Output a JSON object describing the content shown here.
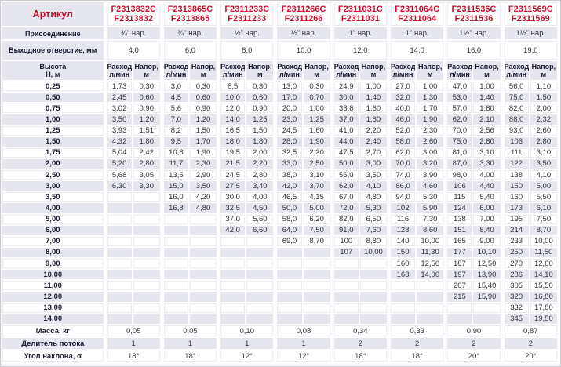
{
  "colors": {
    "accent_red": "#c8102e",
    "stripe": "#e6e6ee",
    "grid_line": "#c9c9ce"
  },
  "table": {
    "labels": {
      "article": "Артикул",
      "connection": "Присоединение",
      "outlet": "Выходное отверстие, мм",
      "height": "Высота\nН, м",
      "flow": "Расход,\nл/мин",
      "head": "Напор,\nм",
      "mass": "Масса, кг",
      "divider": "Делитель потока",
      "angle": "Угол наклона, α"
    },
    "heights": [
      "0,25",
      "0,50",
      "0,75",
      "1,00",
      "1,25",
      "1,50",
      "1,75",
      "2,00",
      "2,50",
      "3,00",
      "3,50",
      "4,00",
      "5,00",
      "6,00",
      "7,00",
      "8,00",
      "9,00",
      "10,00",
      "11,00",
      "12,00",
      "13,00",
      "14,00"
    ],
    "columns": [
      {
        "article_c": "F2313832C",
        "article": "F2313832",
        "connection": "¾\" нар.",
        "outlet": "4,0",
        "mass": "0,05",
        "divider": "1",
        "angle": "18°",
        "values": [
          [
            "1,73",
            "0,30"
          ],
          [
            "2,45",
            "0,60"
          ],
          [
            "3,02",
            "0,90"
          ],
          [
            "3,50",
            "1,20"
          ],
          [
            "3,93",
            "1,51"
          ],
          [
            "4,32",
            "1,80"
          ],
          [
            "5,04",
            "2,42"
          ],
          [
            "5,20",
            "2,80"
          ],
          [
            "5,68",
            "3,05"
          ],
          [
            "6,30",
            "3,30"
          ],
          [
            "",
            ""
          ],
          [
            "",
            ""
          ],
          [
            "",
            ""
          ],
          [
            "",
            ""
          ],
          [
            "",
            ""
          ],
          [
            "",
            ""
          ],
          [
            "",
            ""
          ],
          [
            "",
            ""
          ],
          [
            "",
            ""
          ],
          [
            "",
            ""
          ],
          [
            "",
            ""
          ],
          [
            "",
            ""
          ]
        ]
      },
      {
        "article_c": "F2313865C",
        "article": "F2313865",
        "connection": "¾\" нар.",
        "outlet": "6,0",
        "mass": "0,05",
        "divider": "1",
        "angle": "18°",
        "values": [
          [
            "3,0",
            "0,30"
          ],
          [
            "4,5",
            "0,60"
          ],
          [
            "5,6",
            "0,90"
          ],
          [
            "7,0",
            "1,20"
          ],
          [
            "8,2",
            "1,50"
          ],
          [
            "9,5",
            "1,70"
          ],
          [
            "10,8",
            "1,90"
          ],
          [
            "11,7",
            "2,30"
          ],
          [
            "13,5",
            "2,90"
          ],
          [
            "15,0",
            "3,50"
          ],
          [
            "16,0",
            "4,20"
          ],
          [
            "16,8",
            "4,80"
          ],
          [
            "",
            ""
          ],
          [
            "",
            ""
          ],
          [
            "",
            ""
          ],
          [
            "",
            ""
          ],
          [
            "",
            ""
          ],
          [
            "",
            ""
          ],
          [
            "",
            ""
          ],
          [
            "",
            ""
          ],
          [
            "",
            ""
          ],
          [
            "",
            ""
          ]
        ]
      },
      {
        "article_c": "F2311233C",
        "article": "F2311233",
        "connection": "½\" нар.",
        "outlet": "8,0",
        "mass": "0,10",
        "divider": "1",
        "angle": "12°",
        "values": [
          [
            "8,5",
            "0,30"
          ],
          [
            "10,0",
            "0,60"
          ],
          [
            "12,0",
            "0,90"
          ],
          [
            "14,0",
            "1,25"
          ],
          [
            "16,5",
            "1,50"
          ],
          [
            "18,0",
            "1,80"
          ],
          [
            "19,5",
            "2,00"
          ],
          [
            "21,5",
            "2,20"
          ],
          [
            "24,5",
            "2,80"
          ],
          [
            "27,5",
            "3,40"
          ],
          [
            "30,0",
            "4,00"
          ],
          [
            "32,5",
            "4,50"
          ],
          [
            "37,0",
            "5,60"
          ],
          [
            "42,0",
            "6,60"
          ],
          [
            "",
            ""
          ],
          [
            "",
            ""
          ],
          [
            "",
            ""
          ],
          [
            "",
            ""
          ],
          [
            "",
            ""
          ],
          [
            "",
            ""
          ],
          [
            "",
            ""
          ],
          [
            "",
            ""
          ]
        ]
      },
      {
        "article_c": "F2311266C",
        "article": "F2311266",
        "connection": "½\" нар.",
        "outlet": "10,0",
        "mass": "0,08",
        "divider": "1",
        "angle": "12°",
        "values": [
          [
            "13,0",
            "0,30"
          ],
          [
            "17,0",
            "0,70"
          ],
          [
            "20,0",
            "1,00"
          ],
          [
            "23,0",
            "1,25"
          ],
          [
            "24,5",
            "1,60"
          ],
          [
            "28,0",
            "1,90"
          ],
          [
            "32,5",
            "2,20"
          ],
          [
            "33,0",
            "2,50"
          ],
          [
            "38,0",
            "3,10"
          ],
          [
            "42,0",
            "3,70"
          ],
          [
            "46,5",
            "4,15"
          ],
          [
            "50,0",
            "5,00"
          ],
          [
            "58,0",
            "6,20"
          ],
          [
            "64,0",
            "7,50"
          ],
          [
            "69,0",
            "8,70"
          ],
          [
            "",
            ""
          ],
          [
            "",
            ""
          ],
          [
            "",
            ""
          ],
          [
            "",
            ""
          ],
          [
            "",
            ""
          ],
          [
            "",
            ""
          ],
          [
            "",
            ""
          ]
        ]
      },
      {
        "article_c": "F2311031C",
        "article": "F2311031",
        "connection": "1\" нар.",
        "outlet": "12,0",
        "mass": "0,34",
        "divider": "2",
        "angle": "18°",
        "values": [
          [
            "24,9",
            "1,00"
          ],
          [
            "30,0",
            "1,40"
          ],
          [
            "33,8",
            "1,60"
          ],
          [
            "37,0",
            "1,80"
          ],
          [
            "41,0",
            "2,20"
          ],
          [
            "44,0",
            "2,40"
          ],
          [
            "47,5",
            "2,70"
          ],
          [
            "50,0",
            "3,00"
          ],
          [
            "56,0",
            "3,50"
          ],
          [
            "62,0",
            "4,10"
          ],
          [
            "67,0",
            "4,80"
          ],
          [
            "72,0",
            "5,30"
          ],
          [
            "82,0",
            "6,50"
          ],
          [
            "91,0",
            "7,60"
          ],
          [
            "100",
            "8,80"
          ],
          [
            "107",
            "10,00"
          ],
          [
            "",
            ""
          ],
          [
            "",
            ""
          ],
          [
            "",
            ""
          ],
          [
            "",
            ""
          ],
          [
            "",
            ""
          ],
          [
            "",
            ""
          ]
        ]
      },
      {
        "article_c": "F2311064C",
        "article": "F2311064",
        "connection": "1\" нар.",
        "outlet": "14,0",
        "mass": "0,33",
        "divider": "2",
        "angle": "18°",
        "values": [
          [
            "27,0",
            "1,00"
          ],
          [
            "32,0",
            "1,30"
          ],
          [
            "40,0",
            "1,70"
          ],
          [
            "46,0",
            "1,90"
          ],
          [
            "52,0",
            "2,30"
          ],
          [
            "58,0",
            "2,60"
          ],
          [
            "62,0",
            "3,00"
          ],
          [
            "70,0",
            "3,20"
          ],
          [
            "74,0",
            "3,90"
          ],
          [
            "86,0",
            "4,60"
          ],
          [
            "94,0",
            "5,30"
          ],
          [
            "102",
            "5,90"
          ],
          [
            "116",
            "7,30"
          ],
          [
            "128",
            "8,60"
          ],
          [
            "140",
            "10,00"
          ],
          [
            "150",
            "11,30"
          ],
          [
            "160",
            "12,50"
          ],
          [
            "168",
            "14,00"
          ],
          [
            "",
            ""
          ],
          [
            "",
            ""
          ],
          [
            "",
            ""
          ],
          [
            "",
            ""
          ]
        ]
      },
      {
        "article_c": "F2311536C",
        "article": "F2311536",
        "connection": "1½\" нар.",
        "outlet": "16,0",
        "mass": "0,90",
        "divider": "2",
        "angle": "20°",
        "values": [
          [
            "47,0",
            "1,00"
          ],
          [
            "53,0",
            "1,40"
          ],
          [
            "57,0",
            "1,80"
          ],
          [
            "62,0",
            "2,10"
          ],
          [
            "70,0",
            "2,56"
          ],
          [
            "75,0",
            "2,80"
          ],
          [
            "81,0",
            "3,10"
          ],
          [
            "87,0",
            "3,30"
          ],
          [
            "98,0",
            "4,00"
          ],
          [
            "106",
            "4,40"
          ],
          [
            "115",
            "5,40"
          ],
          [
            "124",
            "6,00"
          ],
          [
            "138",
            "7,00"
          ],
          [
            "151",
            "8,40"
          ],
          [
            "165",
            "9,00"
          ],
          [
            "177",
            "10,10"
          ],
          [
            "187",
            "12,50"
          ],
          [
            "197",
            "13,90"
          ],
          [
            "207",
            "15,40"
          ],
          [
            "215",
            "15,90"
          ],
          [
            "",
            ""
          ],
          [
            "",
            ""
          ]
        ]
      },
      {
        "article_c": "F2311569C",
        "article": "F2311569",
        "connection": "1½\" нар.",
        "outlet": "19,0",
        "mass": "0,87",
        "divider": "2",
        "angle": "20°",
        "values": [
          [
            "56,0",
            "1,10"
          ],
          [
            "75,0",
            "1,50"
          ],
          [
            "82,0",
            "2,00"
          ],
          [
            "88,0",
            "2,32"
          ],
          [
            "93,0",
            "2,60"
          ],
          [
            "106",
            "2,80"
          ],
          [
            "111",
            "3,10"
          ],
          [
            "122",
            "3,50"
          ],
          [
            "138",
            "4,10"
          ],
          [
            "150",
            "5,00"
          ],
          [
            "160",
            "5,50"
          ],
          [
            "173",
            "6,10"
          ],
          [
            "195",
            "7,50"
          ],
          [
            "214",
            "8,70"
          ],
          [
            "233",
            "10,00"
          ],
          [
            "250",
            "11,50"
          ],
          [
            "270",
            "12,60"
          ],
          [
            "286",
            "14,10"
          ],
          [
            "305",
            "15,50"
          ],
          [
            "320",
            "16,80"
          ],
          [
            "332",
            "17,80"
          ],
          [
            "345",
            "19,50"
          ]
        ]
      }
    ]
  }
}
